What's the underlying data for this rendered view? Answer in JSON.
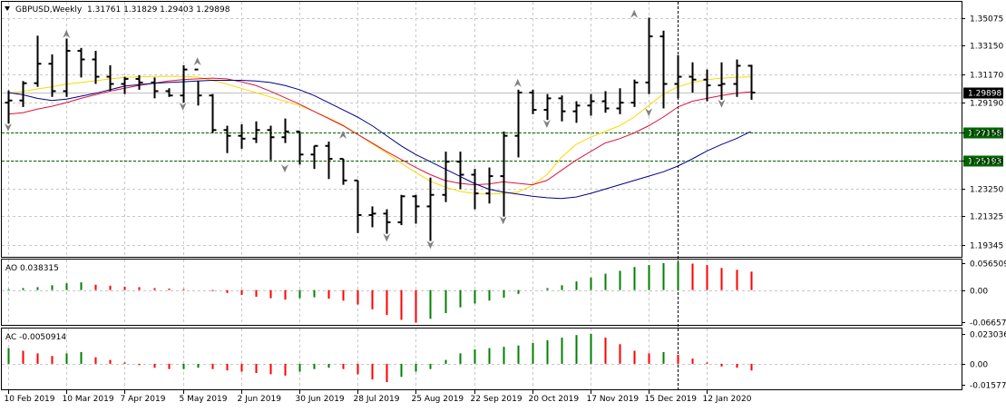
{
  "header": {
    "symbol": "GBPUSD,Weekly",
    "ohlc": "1.31761 1.31829 1.29403 1.29898",
    "menu_icon": "triangle-down-icon"
  },
  "chart_data": [
    {
      "type": "candlestick",
      "panel": "price",
      "title": "GBPUSD,Weekly",
      "ohlc_text": "1.31761 1.31829 1.29403 1.29898",
      "ylim": [
        1.185,
        1.362
      ],
      "y_ticks": [
        "1.35075",
        "1.33150",
        "1.31170",
        "1.29190",
        "1.27158",
        "1.25193",
        "1.23250",
        "1.21325",
        "1.19345"
      ],
      "y_tick_values": [
        1.35075,
        1.3315,
        1.3117,
        1.2919,
        1.27158,
        1.25193,
        1.2325,
        1.21325,
        1.19345
      ],
      "x_ticks": [
        "10 Feb 2019",
        "10 Mar 2019",
        "7 Apr 2019",
        "5 May 2019",
        "2 Jun 2019",
        "30 Jun 2019",
        "28 Jul 2019",
        "25 Aug 2019",
        "22 Sep 2019",
        "20 Oct 2019",
        "17 Nov 2019",
        "15 Dec 2019",
        "12 Jan 2020"
      ],
      "x_tick_index": [
        0,
        4,
        8,
        12,
        16,
        20,
        24,
        28,
        32,
        36,
        40,
        44,
        48
      ],
      "bar_count": 52,
      "current_price": {
        "label": "1.29898",
        "value": 1.29898,
        "color": "#000000"
      },
      "levels": [
        {
          "label": "1.27158",
          "value": 1.27158,
          "color": "#006400"
        },
        {
          "label": "1.25193",
          "value": 1.25193,
          "color": "#006400"
        }
      ],
      "crosshair_bar": 46,
      "bars": [
        [
          1.292,
          1.3005,
          1.2775,
          1.2935
        ],
        [
          1.2935,
          1.307,
          1.289,
          1.3055
        ],
        [
          1.3055,
          1.3385,
          1.303,
          1.319
        ],
        [
          1.319,
          1.3255,
          1.296,
          1.3
        ],
        [
          1.3,
          1.3365,
          1.296,
          1.328
        ],
        [
          1.328,
          1.33,
          1.3095,
          1.322
        ],
        [
          1.322,
          1.328,
          1.305,
          1.31
        ],
        [
          1.31,
          1.318,
          1.3,
          1.305
        ],
        [
          1.305,
          1.31,
          1.298,
          1.3085
        ],
        [
          1.3085,
          1.311,
          1.301,
          1.306
        ],
        [
          1.306,
          1.3095,
          1.295,
          1.3
        ],
        [
          1.3,
          1.302,
          1.296,
          1.297
        ],
        [
          1.297,
          1.318,
          1.292,
          1.315
        ],
        [
          1.315,
          1.307,
          1.29,
          1.297
        ],
        [
          1.297,
          1.298,
          1.271,
          1.273
        ],
        [
          1.273,
          1.276,
          1.257,
          1.269
        ],
        [
          1.269,
          1.277,
          1.26,
          1.267
        ],
        [
          1.267,
          1.279,
          1.264,
          1.273
        ],
        [
          1.273,
          1.276,
          1.252,
          1.268
        ],
        [
          1.268,
          1.281,
          1.264,
          1.272
        ],
        [
          1.272,
          1.272,
          1.249,
          1.256
        ],
        [
          1.256,
          1.262,
          1.246,
          1.262
        ],
        [
          1.262,
          1.265,
          1.239,
          1.253
        ],
        [
          1.253,
          1.253,
          1.235,
          1.238
        ],
        [
          1.238,
          1.238,
          1.2015,
          1.214
        ],
        [
          1.214,
          1.22,
          1.2055,
          1.215
        ],
        [
          1.215,
          1.218,
          1.201,
          1.209
        ],
        [
          1.209,
          1.228,
          1.207,
          1.227
        ],
        [
          1.227,
          1.228,
          1.208,
          1.22
        ],
        [
          1.22,
          1.24,
          1.196,
          1.228
        ],
        [
          1.228,
          1.258,
          1.223,
          1.251
        ],
        [
          1.251,
          1.258,
          1.232,
          1.242
        ],
        [
          1.242,
          1.246,
          1.218,
          1.229
        ],
        [
          1.229,
          1.247,
          1.222,
          1.241
        ],
        [
          1.241,
          1.272,
          1.213,
          1.269
        ],
        [
          1.269,
          1.301,
          1.254,
          1.299
        ],
        [
          1.299,
          1.301,
          1.284,
          1.287
        ],
        [
          1.287,
          1.298,
          1.28,
          1.295
        ],
        [
          1.295,
          1.297,
          1.279,
          1.286
        ],
        [
          1.286,
          1.293,
          1.278,
          1.29
        ],
        [
          1.29,
          1.298,
          1.283,
          1.293
        ],
        [
          1.293,
          1.3,
          1.285,
          1.288
        ],
        [
          1.288,
          1.302,
          1.284,
          1.292
        ],
        [
          1.292,
          1.308,
          1.289,
          1.306
        ],
        [
          1.306,
          1.351,
          1.298,
          1.338
        ],
        [
          1.338,
          1.342,
          1.288,
          1.305
        ],
        [
          1.305,
          1.325,
          1.295,
          1.31
        ],
        [
          1.31,
          1.32,
          1.299,
          1.308
        ],
        [
          1.308,
          1.315,
          1.293,
          1.304
        ],
        [
          1.304,
          1.32,
          1.294,
          1.305
        ],
        [
          1.305,
          1.322,
          1.296,
          1.3176
        ],
        [
          1.31761,
          1.31829,
          1.29403,
          1.29898
        ]
      ],
      "moving_averages": [
        {
          "color": "#ffd700",
          "values": [
            1.2985,
            1.2998,
            1.3015,
            1.303,
            1.3048,
            1.306,
            1.3072,
            1.3085,
            1.3095,
            1.31,
            1.3102,
            1.3103,
            1.3102,
            1.3098,
            1.3075,
            1.305,
            1.302,
            1.299,
            1.296,
            1.293,
            1.29,
            1.286,
            1.2815,
            1.2765,
            1.27,
            1.2635,
            1.257,
            1.25,
            1.2435,
            1.2375,
            1.2335,
            1.2305,
            1.229,
            1.2285,
            1.229,
            1.23,
            1.2345,
            1.242,
            1.254,
            1.263,
            1.268,
            1.272,
            1.276,
            1.282,
            1.29,
            1.298,
            1.303,
            1.306,
            1.308,
            1.309,
            1.3095,
            1.31
          ]
        },
        {
          "color": "#dc143c",
          "values": [
            1.284,
            1.285,
            1.2875,
            1.2895,
            1.292,
            1.295,
            1.2975,
            1.3,
            1.302,
            1.304,
            1.3055,
            1.307,
            1.308,
            1.3085,
            1.309,
            1.3085,
            1.3065,
            1.304,
            1.3,
            1.2955,
            1.291,
            1.286,
            1.281,
            1.276,
            1.27,
            1.264,
            1.258,
            1.2525,
            1.247,
            1.242,
            1.238,
            1.236,
            1.235,
            1.2355,
            1.237,
            1.236,
            1.235,
            1.238,
            1.245,
            1.252,
            1.258,
            1.264,
            1.267,
            1.271,
            1.276,
            1.282,
            1.289,
            1.293,
            1.295,
            1.297,
            1.2985,
            1.2995
          ]
        },
        {
          "color": "#00008b",
          "values": [
            1.299,
            1.2975,
            1.295,
            1.2935,
            1.2945,
            1.2965,
            1.2985,
            1.301,
            1.3035,
            1.3045,
            1.3055,
            1.306,
            1.3065,
            1.307,
            1.3075,
            1.3075,
            1.3075,
            1.307,
            1.306,
            1.304,
            1.301,
            1.297,
            1.292,
            1.287,
            1.282,
            1.276,
            1.269,
            1.262,
            1.256,
            1.251,
            1.246,
            1.241,
            1.236,
            1.232,
            1.23,
            1.2285,
            1.227,
            1.226,
            1.2255,
            1.2265,
            1.229,
            1.232,
            1.235,
            1.238,
            1.241,
            1.244,
            1.248,
            1.253,
            1.2585,
            1.263,
            1.267,
            1.272
          ]
        }
      ],
      "fractals_up": [
        [
          4,
          1.34
        ],
        [
          13,
          1.321
        ],
        [
          23,
          1.27
        ],
        [
          35,
          1.306
        ],
        [
          43,
          1.354
        ]
      ],
      "fractals_down": [
        [
          0,
          1.2745
        ],
        [
          12,
          1.289
        ],
        [
          19,
          1.246
        ],
        [
          26,
          1.198
        ],
        [
          29,
          1.193
        ],
        [
          34,
          1.21
        ],
        [
          37,
          1.277
        ],
        [
          44,
          1.285
        ],
        [
          49,
          1.291
        ]
      ]
    },
    {
      "type": "bar",
      "panel": "AO",
      "name": "AO 0.038315",
      "ylim": [
        -0.0725,
        0.0635
      ],
      "y_ticks": [
        "0.056509",
        "0.00",
        "-0.066572"
      ],
      "y_tick_values": [
        0.056509,
        0.0,
        -0.066572
      ],
      "up_color": "#008000",
      "down_color": "#ff0000",
      "values": [
        0.002,
        0.004,
        0.006,
        0.01,
        0.014,
        0.016,
        0.011,
        0.009,
        0.007,
        0.006,
        0.004,
        0.003,
        0.002,
        0.0,
        -0.002,
        -0.006,
        -0.01,
        -0.014,
        -0.017,
        -0.02,
        -0.017,
        -0.015,
        -0.018,
        -0.022,
        -0.03,
        -0.04,
        -0.052,
        -0.062,
        -0.068,
        -0.06,
        -0.048,
        -0.036,
        -0.028,
        -0.022,
        -0.016,
        -0.008,
        0.0,
        0.004,
        0.01,
        0.018,
        0.026,
        0.034,
        0.04,
        0.048,
        0.052,
        0.056,
        0.058,
        0.055,
        0.052,
        0.046,
        0.042,
        0.038315
      ]
    },
    {
      "type": "bar",
      "panel": "AC",
      "name": "AC -0.0050914",
      "ylim": [
        -0.0195,
        0.027
      ],
      "y_ticks": [
        "0.0230363",
        "0.00",
        "-0.0157756"
      ],
      "y_tick_values": [
        0.0230363,
        0.0,
        -0.0157756
      ],
      "up_color": "#008000",
      "down_color": "#ff0000",
      "values": [
        0.012,
        0.01,
        0.008,
        0.006,
        0.008,
        0.009,
        0.005,
        0.003,
        0.001,
        -0.001,
        -0.003,
        -0.004,
        -0.004,
        -0.003,
        -0.004,
        -0.005,
        -0.006,
        -0.007,
        -0.008,
        -0.009,
        -0.006,
        -0.004,
        -0.003,
        -0.004,
        -0.008,
        -0.012,
        -0.014,
        -0.01,
        -0.006,
        -0.004,
        0.003,
        0.008,
        0.011,
        0.012,
        0.013,
        0.014,
        0.016,
        0.018,
        0.02,
        0.022,
        0.023,
        0.02,
        0.015,
        0.01,
        0.008,
        0.009,
        0.007,
        0.004,
        0.001,
        -0.002,
        -0.003,
        -0.0050914
      ]
    }
  ]
}
